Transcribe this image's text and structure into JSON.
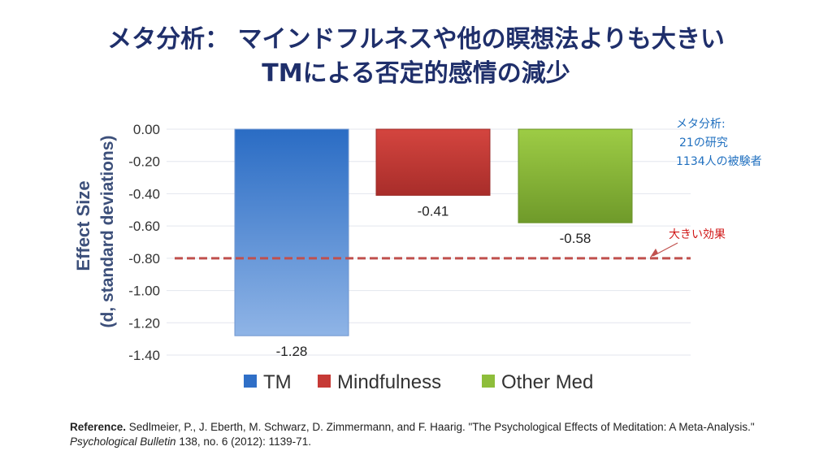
{
  "title": {
    "line1": "メタ分析： マインドフルネスや他の瞑想法よりも大きい",
    "line2": "TMによる否定的感情の減少"
  },
  "chart_data": {
    "type": "bar",
    "categories": [
      "TM",
      "Mindfulness",
      "Other Med"
    ],
    "values": [
      -1.28,
      -0.41,
      -0.58
    ],
    "data_labels": [
      "-1.28",
      "-0.41",
      "-0.58"
    ],
    "ylabel_line1": "Effect Size",
    "ylabel_line2": "(d, standard deviations)",
    "ylim": [
      -1.4,
      0
    ],
    "yticks": [
      "0.00",
      "-0.20",
      "-0.40",
      "-0.60",
      "-0.80",
      "-1.00",
      "-1.20",
      "-1.40"
    ],
    "ytick_values": [
      0,
      -0.2,
      -0.4,
      -0.6,
      -0.8,
      -1.0,
      -1.2,
      -1.4
    ],
    "grid": true,
    "legend_position": "bottom",
    "colors": [
      "#2f6fc7",
      "#c63a36",
      "#8ebe3b"
    ],
    "reference_line": {
      "value": -0.8,
      "label": "大きい効果",
      "color": "#c0504d"
    }
  },
  "annotation": {
    "line1": "メタ分析:",
    "line2": "21の研究",
    "line3": "1134人の被験者"
  },
  "reference": {
    "label": "Reference.",
    "text_before": " Sedlmeier, P., J. Eberth, M. Schwarz, D. Zimmermann, and F. Haarig. \"The Psychological Effects of Meditation: A Meta-Analysis.\" ",
    "journal": "Psychological Bulletin",
    "text_after": " 138, no. 6 (2012): 1139-71."
  }
}
